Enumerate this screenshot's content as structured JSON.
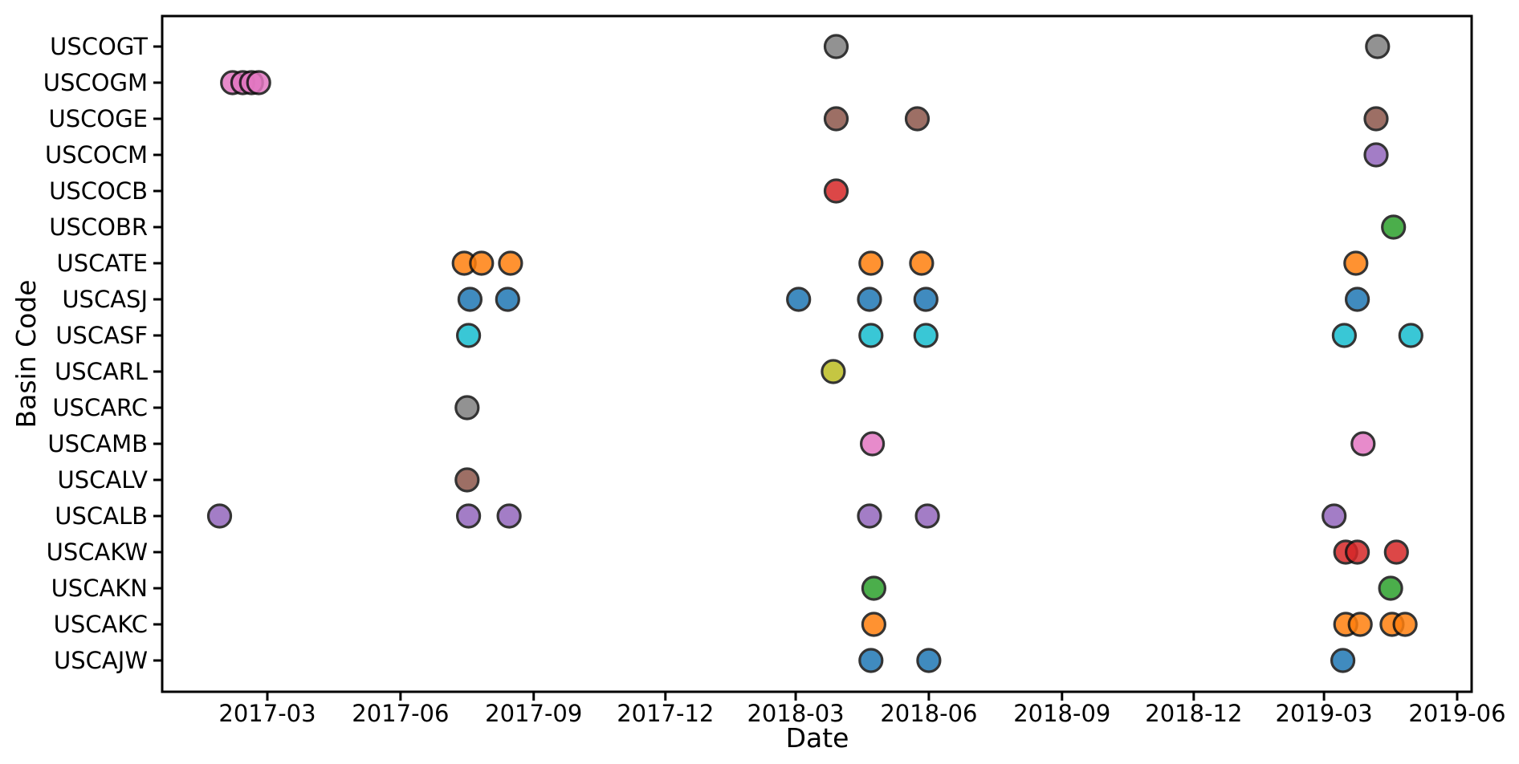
{
  "chart_data": {
    "type": "scatter",
    "title": "",
    "xlabel": "Date",
    "ylabel": "Basin Code",
    "grid": false,
    "legend": "none",
    "x_axis_range": [
      "2016-12-18",
      "2019-06-11"
    ],
    "x_ticks": [
      {
        "label": "2017-03",
        "date": "2017-03-01"
      },
      {
        "label": "2017-06",
        "date": "2017-06-01"
      },
      {
        "label": "2017-09",
        "date": "2017-09-01"
      },
      {
        "label": "2017-12",
        "date": "2017-12-01"
      },
      {
        "label": "2018-03",
        "date": "2018-03-01"
      },
      {
        "label": "2018-06",
        "date": "2018-06-01"
      },
      {
        "label": "2018-09",
        "date": "2018-09-01"
      },
      {
        "label": "2018-12",
        "date": "2018-12-01"
      },
      {
        "label": "2019-03",
        "date": "2019-03-01"
      },
      {
        "label": "2019-06",
        "date": "2019-06-01"
      }
    ],
    "y_categories_top_to_bottom": [
      "USCOGT",
      "USCOGM",
      "USCOGE",
      "USCOCM",
      "USCOCB",
      "USCOBR",
      "USCATE",
      "USCASJ",
      "USCASF",
      "USCARL",
      "USCARC",
      "USCAMB",
      "USCALV",
      "USCALB",
      "USCAKW",
      "USCAKN",
      "USCAKC",
      "USCAJW"
    ],
    "palette": {
      "USCOGT": "#7f7f7f",
      "USCOGM": "#e377c2",
      "USCOGE": "#8c564b",
      "USCOCM": "#9467bd",
      "USCOCB": "#d62728",
      "USCOBR": "#2ca02c",
      "USCATE": "#ff7f0e",
      "USCASJ": "#1f77b4",
      "USCASF": "#17becf",
      "USCARL": "#bcbd22",
      "USCARC": "#7f7f7f",
      "USCAMB": "#e377c2",
      "USCALV": "#8c564b",
      "USCALB": "#9467bd",
      "USCAKW": "#d62728",
      "USCAKN": "#2ca02c",
      "USCAKC": "#ff7f0e",
      "USCAJW": "#1f77b4"
    },
    "marker_style": {
      "shape": "circle",
      "edge_color": "#111111",
      "alpha": 0.85
    },
    "points": [
      {
        "basin": "USCOGT",
        "date": "2018-03-29"
      },
      {
        "basin": "USCOGT",
        "date": "2019-04-07"
      },
      {
        "basin": "USCOGM",
        "date": "2017-02-05"
      },
      {
        "basin": "USCOGM",
        "date": "2017-02-12"
      },
      {
        "basin": "USCOGM",
        "date": "2017-02-18"
      },
      {
        "basin": "USCOGM",
        "date": "2017-02-23"
      },
      {
        "basin": "USCOGE",
        "date": "2018-03-29"
      },
      {
        "basin": "USCOGE",
        "date": "2018-05-24"
      },
      {
        "basin": "USCOGE",
        "date": "2019-04-06"
      },
      {
        "basin": "USCOCM",
        "date": "2019-04-06"
      },
      {
        "basin": "USCOCB",
        "date": "2018-03-29"
      },
      {
        "basin": "USCOBR",
        "date": "2019-04-18"
      },
      {
        "basin": "USCATE",
        "date": "2017-07-15"
      },
      {
        "basin": "USCATE",
        "date": "2017-07-27"
      },
      {
        "basin": "USCATE",
        "date": "2017-08-16"
      },
      {
        "basin": "USCATE",
        "date": "2018-04-22"
      },
      {
        "basin": "USCATE",
        "date": "2018-05-27"
      },
      {
        "basin": "USCATE",
        "date": "2019-03-23"
      },
      {
        "basin": "USCASJ",
        "date": "2017-07-19"
      },
      {
        "basin": "USCASJ",
        "date": "2017-08-14"
      },
      {
        "basin": "USCASJ",
        "date": "2018-03-03"
      },
      {
        "basin": "USCASJ",
        "date": "2018-04-21"
      },
      {
        "basin": "USCASJ",
        "date": "2018-05-30"
      },
      {
        "basin": "USCASJ",
        "date": "2019-03-24"
      },
      {
        "basin": "USCASF",
        "date": "2017-07-18"
      },
      {
        "basin": "USCASF",
        "date": "2018-04-22"
      },
      {
        "basin": "USCASF",
        "date": "2018-05-30"
      },
      {
        "basin": "USCASF",
        "date": "2019-03-15"
      },
      {
        "basin": "USCASF",
        "date": "2019-04-30"
      },
      {
        "basin": "USCARL",
        "date": "2018-03-27"
      },
      {
        "basin": "USCARC",
        "date": "2017-07-17"
      },
      {
        "basin": "USCAMB",
        "date": "2018-04-23"
      },
      {
        "basin": "USCAMB",
        "date": "2019-03-28"
      },
      {
        "basin": "USCALV",
        "date": "2017-07-17"
      },
      {
        "basin": "USCALB",
        "date": "2017-01-27"
      },
      {
        "basin": "USCALB",
        "date": "2017-07-18"
      },
      {
        "basin": "USCALB",
        "date": "2017-08-15"
      },
      {
        "basin": "USCALB",
        "date": "2018-04-21"
      },
      {
        "basin": "USCALB",
        "date": "2018-05-31"
      },
      {
        "basin": "USCALB",
        "date": "2019-03-08"
      },
      {
        "basin": "USCAKW",
        "date": "2019-03-16"
      },
      {
        "basin": "USCAKW",
        "date": "2019-03-24"
      },
      {
        "basin": "USCAKW",
        "date": "2019-04-20"
      },
      {
        "basin": "USCAKN",
        "date": "2018-04-24"
      },
      {
        "basin": "USCAKN",
        "date": "2019-04-16"
      },
      {
        "basin": "USCAKC",
        "date": "2018-04-24"
      },
      {
        "basin": "USCAKC",
        "date": "2019-03-16"
      },
      {
        "basin": "USCAKC",
        "date": "2019-03-26"
      },
      {
        "basin": "USCAKC",
        "date": "2019-04-17"
      },
      {
        "basin": "USCAKC",
        "date": "2019-04-26"
      },
      {
        "basin": "USCAJW",
        "date": "2018-04-22"
      },
      {
        "basin": "USCAJW",
        "date": "2018-06-01"
      },
      {
        "basin": "USCAJW",
        "date": "2019-03-14"
      }
    ]
  }
}
